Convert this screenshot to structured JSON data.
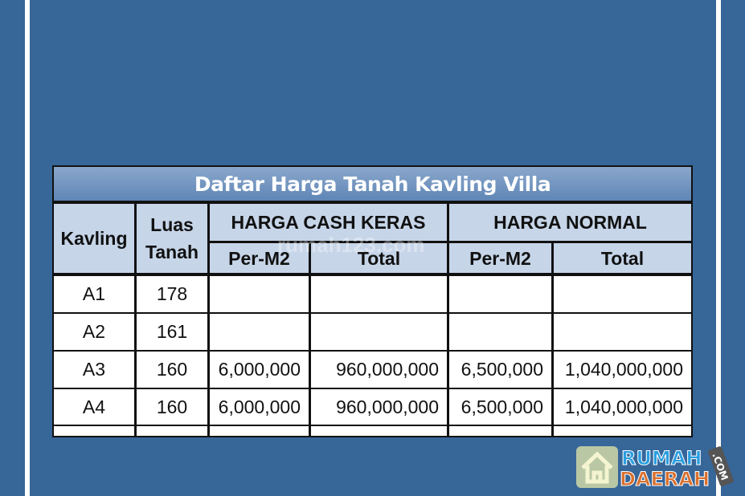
{
  "title": "Daftar Harga Tanah Kavling Villa",
  "headers": {
    "kavling": "Kavling",
    "luas": "Luas Tanah",
    "cash": "HARGA CASH KERAS",
    "normal": "HARGA NORMAL",
    "per_m2": "Per-M2",
    "total": "Total"
  },
  "rows": [
    {
      "kavling": "A1",
      "luas": "178",
      "cash_m2": "",
      "cash_total": "",
      "normal_m2": "",
      "normal_total": ""
    },
    {
      "kavling": "A2",
      "luas": "161",
      "cash_m2": "",
      "cash_total": "",
      "normal_m2": "",
      "normal_total": ""
    },
    {
      "kavling": "A3",
      "luas": "160",
      "cash_m2": "6,000,000",
      "cash_total": "960,000,000",
      "normal_m2": "6,500,000",
      "normal_total": "1,040,000,000"
    },
    {
      "kavling": "A4",
      "luas": "160",
      "cash_m2": "6,000,000",
      "cash_total": "960,000,000",
      "normal_m2": "6,500,000",
      "normal_total": "1,040,000,000"
    }
  ],
  "watermark": "rumah123.com",
  "logo": {
    "line1": "RUMAH",
    "line2": "DAERAH",
    "tag": ".COM"
  },
  "colors": {
    "background": "#376699",
    "header": "#c6d5e8"
  }
}
